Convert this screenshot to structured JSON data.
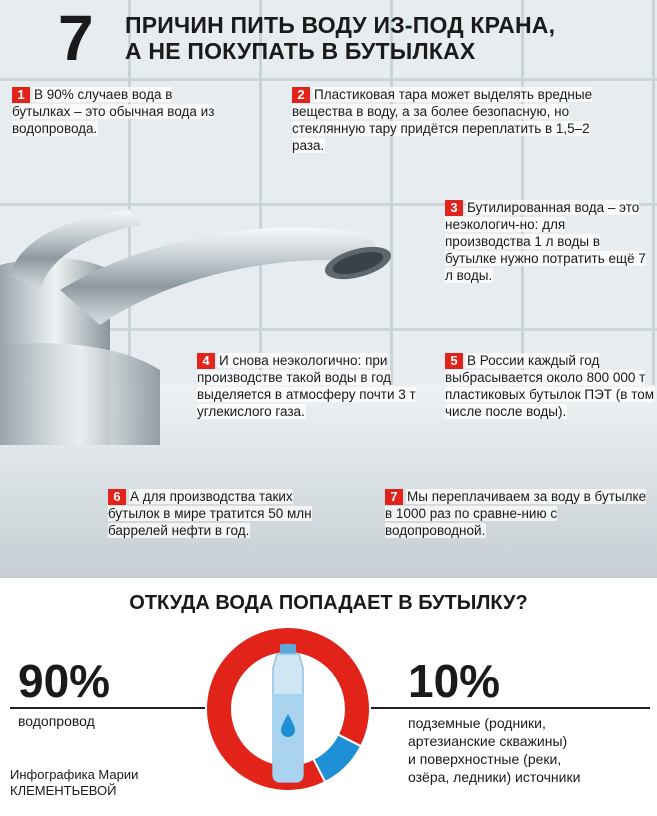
{
  "title": {
    "number": "7",
    "line1": "ПРИЧИН ПИТЬ ВОДУ ИЗ-ПОД КРАНА,",
    "line2": "А НЕ ПОКУПАТЬ В БУТЫЛКАХ"
  },
  "reasons": [
    {
      "num": "1",
      "text": "В 90% случаев вода в бутылках – это обычная вода из водопровода."
    },
    {
      "num": "2",
      "text": "Пластиковая тара может выделять вредные вещества в воду, а за более безопасную, но стеклянную тару придётся переплатить в 1,5–2 раза."
    },
    {
      "num": "3",
      "text": "Бутилированная вода – это неэкологич-но: для производства 1 л воды в бутылке нужно потратить ещё 7 л воды."
    },
    {
      "num": "4",
      "text": "И снова неэкологично: при производстве такой воды в год выделяется в атмосферу почти 3 т углекислого газа."
    },
    {
      "num": "5",
      "text": "В России каждый год выбрасывается около 800 000 т пластиковых бутылок ПЭТ (в том числе после воды)."
    },
    {
      "num": "6",
      "text": "А для производства таких бутылок в мире тратится 50 млн баррелей нефти в год."
    },
    {
      "num": "7",
      "text": "Мы переплачиваем за воду в бутылке в 1000 раз по сравне-нию с водопроводной."
    }
  ],
  "chart_title": "ОТКУДА ВОДА ПОПАДАЕТ В БУТЫЛКУ?",
  "chart_data": {
    "type": "pie",
    "values": [
      90,
      10
    ],
    "colors": [
      "#e2231a",
      "#1f8fd6"
    ]
  },
  "left_stat": {
    "value": "90%",
    "label": "водопровод"
  },
  "right_stat": {
    "value": "10%",
    "label_lines": [
      "подземные (родники,",
      "артезианские скважины)",
      "и поверхностные (реки,",
      "озёра, ледники) источники"
    ]
  },
  "credit": {
    "line1": "Инфографика Марии",
    "line2": "КЛЕМЕНТЬЕВОЙ"
  },
  "colors": {
    "accent": "#e2231a",
    "blue": "#1f8fd6",
    "tile": "#e6ecef"
  }
}
